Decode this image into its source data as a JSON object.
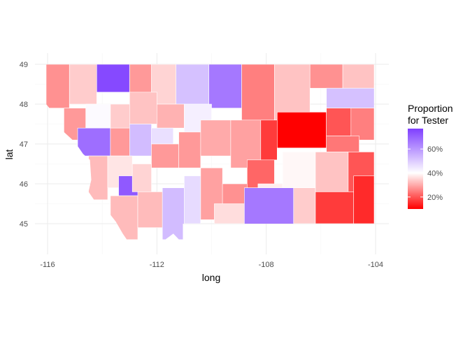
{
  "chart_data": {
    "type": "heatmap",
    "subtype": "choropleth",
    "title": "",
    "xlabel": "long",
    "ylabel": "lat",
    "xlim": [
      -116.3,
      -103.6
    ],
    "ylim": [
      44.3,
      49.2
    ],
    "x_ticks": [
      -116,
      -112,
      -108,
      -104
    ],
    "x_tick_labels": [
      "-116",
      "-112",
      "-108",
      "-104"
    ],
    "y_ticks": [
      45,
      46,
      47,
      48,
      49
    ],
    "y_tick_labels": [
      "45",
      "46",
      "47",
      "48",
      "49"
    ],
    "grid": true,
    "legend": {
      "title_lines": [
        "Proportion",
        "for Tester"
      ],
      "position": "right",
      "labels": [
        "20%",
        "40%",
        "60%"
      ],
      "breaks": [
        0.2,
        0.4,
        0.6
      ],
      "range": [
        0.1,
        0.77
      ],
      "colors": {
        "low": "#ff0000",
        "mid": "#ffffff",
        "high": "#7f3fff",
        "midpoint": 0.4
      }
    },
    "regions": [
      {
        "id": "nw-1",
        "lon": [
          -116.05,
          -115.2
        ],
        "lat": [
          47.9,
          49.0
        ],
        "value": 0.27
      },
      {
        "id": "nw-2",
        "lon": [
          -115.2,
          -114.2
        ],
        "lat": [
          48.0,
          49.0
        ],
        "value": 0.34
      },
      {
        "id": "nw-3",
        "lon": [
          -114.2,
          -113.0
        ],
        "lat": [
          48.3,
          49.0
        ],
        "value": 0.75
      },
      {
        "id": "nw-4",
        "lon": [
          -113.0,
          -112.2
        ],
        "lat": [
          48.0,
          49.0
        ],
        "value": 0.28
      },
      {
        "id": "nw-5",
        "lon": [
          -112.2,
          -111.3
        ],
        "lat": [
          48.0,
          49.0
        ],
        "value": 0.35
      },
      {
        "id": "nw-6",
        "lon": [
          -111.3,
          -110.1
        ],
        "lat": [
          48.0,
          49.0
        ],
        "value": 0.52
      },
      {
        "id": "n-7",
        "lon": [
          -110.1,
          -108.9
        ],
        "lat": [
          47.9,
          49.0
        ],
        "value": 0.66
      },
      {
        "id": "n-8",
        "lon": [
          -108.9,
          -107.7
        ],
        "lat": [
          47.6,
          49.0
        ],
        "value": 0.25
      },
      {
        "id": "n-9",
        "lon": [
          -107.7,
          -106.4
        ],
        "lat": [
          47.6,
          49.0
        ],
        "value": 0.33
      },
      {
        "id": "ne-10",
        "lon": [
          -106.4,
          -105.2
        ],
        "lat": [
          48.4,
          49.0
        ],
        "value": 0.27
      },
      {
        "id": "ne-11",
        "lon": [
          -105.2,
          -104.05
        ],
        "lat": [
          48.4,
          49.0
        ],
        "value": 0.33
      },
      {
        "id": "ne-12",
        "lon": [
          -105.8,
          -104.05
        ],
        "lat": [
          47.9,
          48.4
        ],
        "value": 0.52
      },
      {
        "id": "w-13",
        "lon": [
          -115.4,
          -114.6
        ],
        "lat": [
          47.1,
          47.9
        ],
        "value": 0.28
      },
      {
        "id": "w-14",
        "lon": [
          -114.6,
          -113.7
        ],
        "lat": [
          47.4,
          48.0
        ],
        "value": 0.41
      },
      {
        "id": "w-15",
        "lon": [
          -113.7,
          -113.0
        ],
        "lat": [
          47.4,
          48.0
        ],
        "value": 0.34
      },
      {
        "id": "c-16",
        "lon": [
          -113.0,
          -112.0
        ],
        "lat": [
          47.5,
          48.3
        ],
        "value": 0.33
      },
      {
        "id": "c-17",
        "lon": [
          -112.0,
          -111.0
        ],
        "lat": [
          47.4,
          48.0
        ],
        "value": 0.31
      },
      {
        "id": "c-18",
        "lon": [
          -111.0,
          -110.0
        ],
        "lat": [
          47.3,
          48.0
        ],
        "value": 0.43
      },
      {
        "id": "w-19",
        "lon": [
          -114.9,
          -113.7
        ],
        "lat": [
          46.7,
          47.4
        ],
        "value": 0.68
      },
      {
        "id": "w-20",
        "lon": [
          -113.7,
          -113.0
        ],
        "lat": [
          46.7,
          47.4
        ],
        "value": 0.28
      },
      {
        "id": "c-21",
        "lon": [
          -113.0,
          -112.2
        ],
        "lat": [
          46.7,
          47.5
        ],
        "value": 0.53
      },
      {
        "id": "c-22",
        "lon": [
          -112.2,
          -111.4
        ],
        "lat": [
          47.0,
          47.4
        ],
        "value": 0.46
      },
      {
        "id": "c-23",
        "lon": [
          -112.2,
          -111.2
        ],
        "lat": [
          46.4,
          47.0
        ],
        "value": 0.28
      },
      {
        "id": "c-24",
        "lon": [
          -111.2,
          -110.4
        ],
        "lat": [
          46.4,
          47.3
        ],
        "value": 0.28
      },
      {
        "id": "c-25",
        "lon": [
          -110.4,
          -109.3
        ],
        "lat": [
          46.7,
          47.6
        ],
        "value": 0.3
      },
      {
        "id": "c-26",
        "lon": [
          -109.3,
          -108.2
        ],
        "lat": [
          46.4,
          47.6
        ],
        "value": 0.29
      },
      {
        "id": "c-27",
        "lon": [
          -108.2,
          -107.6
        ],
        "lat": [
          46.6,
          47.6
        ],
        "value": 0.17
      },
      {
        "id": "e-28",
        "lon": [
          -107.6,
          -105.8
        ],
        "lat": [
          46.9,
          47.8
        ],
        "value": 0.1
      },
      {
        "id": "e-29",
        "lon": [
          -105.8,
          -104.9
        ],
        "lat": [
          47.2,
          47.9
        ],
        "value": 0.2
      },
      {
        "id": "e-30",
        "lon": [
          -104.9,
          -104.05
        ],
        "lat": [
          47.1,
          47.9
        ],
        "value": 0.25
      },
      {
        "id": "e-31",
        "lon": [
          -105.8,
          -104.6
        ],
        "lat": [
          46.8,
          47.2
        ],
        "value": 0.24
      },
      {
        "id": "sw-32",
        "lon": [
          -114.5,
          -113.8
        ],
        "lat": [
          45.6,
          46.7
        ],
        "value": 0.32
      },
      {
        "id": "sw-33",
        "lon": [
          -113.8,
          -112.9
        ],
        "lat": [
          45.9,
          46.7
        ],
        "value": 0.37
      },
      {
        "id": "sw-34",
        "lon": [
          -113.4,
          -112.6
        ],
        "lat": [
          45.7,
          46.2
        ],
        "value": 0.72
      },
      {
        "id": "sw-35",
        "lon": [
          -112.9,
          -112.2
        ],
        "lat": [
          45.8,
          46.5
        ],
        "value": 0.35
      },
      {
        "id": "sw-36",
        "lon": [
          -113.7,
          -112.7
        ],
        "lat": [
          44.6,
          45.7
        ],
        "value": 0.32
      },
      {
        "id": "sw-37",
        "lon": [
          -112.7,
          -111.8
        ],
        "lat": [
          44.9,
          45.8
        ],
        "value": 0.32
      },
      {
        "id": "s-38",
        "lon": [
          -111.8,
          -111.0
        ],
        "lat": [
          44.6,
          45.9
        ],
        "value": 0.53
      },
      {
        "id": "s-39",
        "lon": [
          -111.0,
          -110.4
        ],
        "lat": [
          45.0,
          46.2
        ],
        "value": 0.47
      },
      {
        "id": "s-40",
        "lon": [
          -110.4,
          -109.6
        ],
        "lat": [
          45.1,
          46.4
        ],
        "value": 0.29
      },
      {
        "id": "s-41",
        "lon": [
          -109.6,
          -108.7
        ],
        "lat": [
          45.0,
          46.0
        ],
        "value": 0.27
      },
      {
        "id": "s-42",
        "lon": [
          -108.7,
          -107.7
        ],
        "lat": [
          45.9,
          46.6
        ],
        "value": 0.22
      },
      {
        "id": "s-43",
        "lon": [
          -108.3,
          -107.4
        ],
        "lat": [
          45.4,
          46.0
        ],
        "value": 0.38
      },
      {
        "id": "s-44",
        "lon": [
          -109.9,
          -108.8
        ],
        "lat": [
          45.0,
          45.5
        ],
        "value": 0.36
      },
      {
        "id": "s-45",
        "lon": [
          -108.8,
          -107.0
        ],
        "lat": [
          44.95,
          45.9
        ],
        "value": 0.66
      },
      {
        "id": "se-46",
        "lon": [
          -107.4,
          -106.2
        ],
        "lat": [
          45.9,
          46.8
        ],
        "value": 0.39
      },
      {
        "id": "se-47",
        "lon": [
          -107.0,
          -106.2
        ],
        "lat": [
          45.0,
          45.9
        ],
        "value": 0.34
      },
      {
        "id": "se-48",
        "lon": [
          -106.2,
          -105.0
        ],
        "lat": [
          45.8,
          46.8
        ],
        "value": 0.33
      },
      {
        "id": "se-49",
        "lon": [
          -105.0,
          -104.05
        ],
        "lat": [
          45.8,
          46.8
        ],
        "value": 0.2
      },
      {
        "id": "se-50",
        "lon": [
          -106.2,
          -104.8
        ],
        "lat": [
          45.0,
          45.8
        ],
        "value": 0.17
      },
      {
        "id": "se-51",
        "lon": [
          -104.8,
          -104.05
        ],
        "lat": [
          45.0,
          46.2
        ],
        "value": 0.15
      }
    ]
  }
}
